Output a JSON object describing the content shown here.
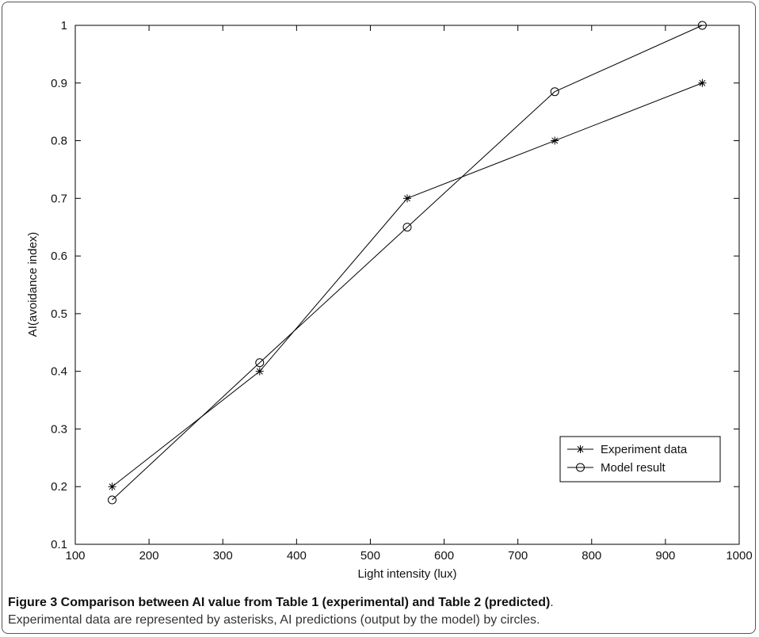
{
  "chart_data": {
    "type": "line",
    "xlabel": "Light intensity (lux)",
    "ylabel": "AI(avoidance index)",
    "xlim": [
      100,
      1000
    ],
    "ylim": [
      0.1,
      1.0
    ],
    "x_ticks": [
      "100",
      "200",
      "300",
      "400",
      "500",
      "600",
      "700",
      "800",
      "900",
      "1000"
    ],
    "y_ticks": [
      "0.1",
      "0.2",
      "0.3",
      "0.4",
      "0.5",
      "0.6",
      "0.7",
      "0.8",
      "0.9",
      "1"
    ],
    "grid": false,
    "legend_position": "bottom-right",
    "series": [
      {
        "name": "Experiment data",
        "marker": "asterisk",
        "x": [
          150,
          350,
          550,
          750,
          950
        ],
        "y": [
          0.2,
          0.4,
          0.7,
          0.8,
          0.9
        ]
      },
      {
        "name": "Model result",
        "marker": "circle",
        "x": [
          150,
          350,
          550,
          750,
          950
        ],
        "y": [
          0.177,
          0.415,
          0.65,
          0.885,
          1.0
        ]
      }
    ]
  },
  "caption": {
    "title": "Figure 3 Comparison between AI value from Table 1 (experimental) and Table 2 (predicted)",
    "text": "Experimental data are represented by asterisks, AI predictions (output by the model) by circles."
  }
}
